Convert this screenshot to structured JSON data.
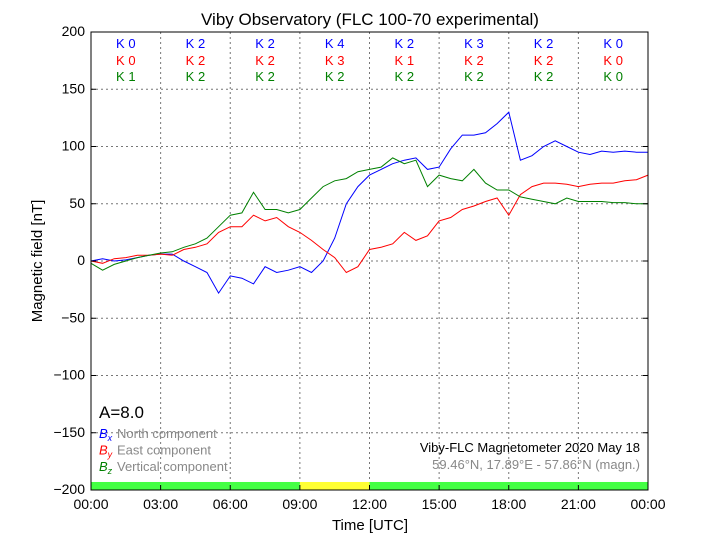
{
  "chart_data": {
    "type": "line",
    "title": "Viby Observatory (FLC 100-70 experimental)",
    "xlabel": "Time [UTC]",
    "ylabel": "Magnetic field [nT]",
    "xlim": [
      0,
      24
    ],
    "ylim": [
      -200,
      200
    ],
    "grid": true,
    "x_ticks": [
      0,
      3,
      6,
      9,
      12,
      15,
      18,
      21,
      24
    ],
    "x_tick_labels": [
      "00:00",
      "03:00",
      "06:00",
      "09:00",
      "12:00",
      "15:00",
      "18:00",
      "21:00",
      "00:00"
    ],
    "y_ticks": [
      200,
      150,
      100,
      50,
      0,
      -50,
      -100,
      -150,
      -200
    ],
    "y_tick_labels": [
      "200",
      "150",
      "100",
      "50",
      "0",
      "−50",
      "−100",
      "−150",
      "−200"
    ],
    "x_hours": [
      0,
      0.5,
      1,
      1.5,
      2,
      2.5,
      3,
      3.5,
      4,
      4.5,
      5,
      5.5,
      6,
      6.5,
      7,
      7.5,
      8,
      8.5,
      9,
      9.5,
      10,
      10.5,
      11,
      11.5,
      12,
      12.5,
      13,
      13.5,
      14,
      14.5,
      15,
      15.5,
      16,
      16.5,
      17,
      17.5,
      18,
      18.5,
      19,
      19.5,
      20,
      20.5,
      21,
      21.5,
      22,
      22.5,
      23,
      23.5,
      24
    ],
    "series": [
      {
        "name": "North component",
        "symbol": "B",
        "sub": "x",
        "color": "#0000ff",
        "values": [
          0,
          2,
          0,
          1,
          3,
          5,
          6,
          6,
          0,
          -5,
          -10,
          -28,
          -13,
          -15,
          -20,
          -5,
          -10,
          -8,
          -5,
          -10,
          0,
          20,
          50,
          65,
          75,
          80,
          85,
          88,
          90,
          80,
          82,
          98,
          110,
          110,
          112,
          120,
          130,
          88,
          92,
          100,
          105,
          100,
          95,
          93,
          96,
          95,
          96,
          95,
          95
        ]
      },
      {
        "name": "East component",
        "symbol": "B",
        "sub": "y",
        "color": "#ff0000",
        "values": [
          0,
          -2,
          2,
          3,
          5,
          5,
          6,
          5,
          10,
          12,
          15,
          25,
          30,
          30,
          40,
          35,
          38,
          30,
          25,
          18,
          10,
          3,
          -10,
          -5,
          10,
          12,
          15,
          25,
          18,
          22,
          35,
          38,
          45,
          48,
          52,
          55,
          40,
          58,
          65,
          68,
          68,
          67,
          65,
          67,
          68,
          68,
          70,
          71,
          75
        ]
      },
      {
        "name": "Vertical component",
        "symbol": "B",
        "sub": "z",
        "color": "#008000",
        "values": [
          -2,
          -8,
          -3,
          0,
          3,
          5,
          7,
          8,
          12,
          15,
          20,
          30,
          40,
          42,
          60,
          45,
          45,
          42,
          45,
          55,
          65,
          70,
          72,
          78,
          80,
          82,
          90,
          85,
          88,
          65,
          75,
          72,
          70,
          80,
          68,
          62,
          62,
          56,
          54,
          52,
          50,
          55,
          52,
          52,
          52,
          51,
          51,
          50,
          50
        ]
      }
    ],
    "k_indices": {
      "x": [
        "K 0",
        "K 2",
        "K 2",
        "K 4",
        "K 2",
        "K 3",
        "K 2",
        "K 0"
      ],
      "y": [
        "K 0",
        "K 2",
        "K 2",
        "K 3",
        "K 1",
        "K 2",
        "K 2",
        "K 0"
      ],
      "z": [
        "K 1",
        "K 2",
        "K 2",
        "K 2",
        "K 2",
        "K 2",
        "K 2",
        "K 0"
      ]
    },
    "activity_bar": [
      "#44ff44",
      "#44ff44",
      "#44ff44",
      "#ffff33",
      "#44ff44",
      "#44ff44",
      "#44ff44",
      "#44ff44"
    ],
    "a_index": "A=8.0",
    "station_label": "Viby-FLC Magnetometer 2020 May 18",
    "coords_label": "59.46°N, 17.89°E - 57.86°N (magn.)",
    "legend_placement": "bottom-left"
  }
}
